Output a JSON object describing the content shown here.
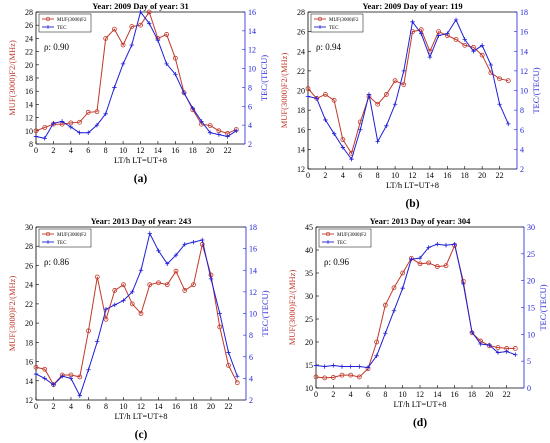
{
  "figure": {
    "colors": {
      "muf": "#c0392b",
      "tec": "#1f1fd6"
    }
  },
  "chart_data": [
    {
      "type": "line",
      "title": "Year: 2009   Day of year: 31",
      "xlabel": "LT/h LT=UT+8",
      "ylabel_left": "MUF(3000)F2/(MHz)",
      "ylabel_right": "TEC/(TECU)",
      "annotation": "ρ: 0.90",
      "panel_label": "(a)",
      "xlim": [
        0,
        24
      ],
      "ylim_left": [
        8,
        28
      ],
      "ylim_right": [
        2,
        16
      ],
      "xticks": [
        0,
        2,
        4,
        6,
        8,
        10,
        12,
        14,
        16,
        18,
        20,
        22
      ],
      "yticks_left": [
        8,
        10,
        12,
        14,
        16,
        18,
        20,
        22,
        24,
        26,
        28
      ],
      "yticks_right": [
        2,
        4,
        6,
        8,
        10,
        12,
        14,
        16
      ],
      "grid": false,
      "legend": "top-left",
      "series": [
        {
          "name": "MUF(3000)F2",
          "axis": "left",
          "marker": "circle",
          "x": [
            0,
            1,
            2,
            3,
            4,
            5,
            6,
            7,
            8,
            9,
            10,
            11,
            12,
            13,
            14,
            15,
            16,
            17,
            18,
            19,
            20,
            21,
            22,
            23
          ],
          "y": [
            10.0,
            10.5,
            11.0,
            11.0,
            11.2,
            11.3,
            12.8,
            12.9,
            24.0,
            25.4,
            23.0,
            25.8,
            26.0,
            28.0,
            24.0,
            24.6,
            21.0,
            15.8,
            13.2,
            11.0,
            10.8,
            10.0,
            9.6,
            10.2
          ]
        },
        {
          "name": "TEC",
          "axis": "right",
          "marker": "plus",
          "x": [
            0,
            1,
            2,
            3,
            4,
            5,
            6,
            7,
            8,
            9,
            10,
            11,
            12,
            13,
            14,
            15,
            16,
            17,
            18,
            19,
            20,
            21,
            22,
            23
          ],
          "y": [
            2.8,
            2.6,
            4.2,
            4.4,
            3.8,
            3.2,
            3.2,
            4.0,
            5.2,
            8.0,
            10.5,
            12.5,
            16.0,
            14.8,
            13.0,
            10.5,
            9.4,
            7.4,
            5.8,
            4.4,
            3.2,
            3.0,
            2.8,
            3.4
          ]
        }
      ]
    },
    {
      "type": "line",
      "title": "Year: 2009   Day of year: 119",
      "xlabel": "LT/h LT=UT+8",
      "ylabel_left": "MUF(3000)F2/(MHz)",
      "ylabel_right": "TEC/(TECU)",
      "annotation": "ρ: 0.94",
      "panel_label": "(b)",
      "xlim": [
        0,
        24
      ],
      "ylim_left": [
        12,
        28
      ],
      "ylim_right": [
        2,
        18
      ],
      "xticks": [
        0,
        2,
        4,
        6,
        8,
        10,
        12,
        14,
        16,
        18,
        20,
        22
      ],
      "yticks_left": [
        12,
        14,
        16,
        18,
        20,
        22,
        24,
        26,
        28
      ],
      "yticks_right": [
        2,
        4,
        6,
        8,
        10,
        12,
        14,
        16,
        18
      ],
      "grid": false,
      "legend": "top-left",
      "series": [
        {
          "name": "MUF(3000)F2",
          "axis": "left",
          "marker": "circle",
          "x": [
            0,
            1,
            2,
            3,
            4,
            5,
            6,
            7,
            8,
            9,
            10,
            11,
            12,
            13,
            14,
            15,
            16,
            17,
            18,
            19,
            20,
            21,
            22,
            23
          ],
          "y": [
            20.2,
            19.2,
            19.6,
            19.0,
            15.0,
            13.6,
            16.8,
            19.4,
            18.6,
            19.6,
            21.0,
            20.6,
            26.0,
            26.2,
            24.0,
            26.0,
            25.6,
            25.2,
            24.6,
            24.4,
            23.6,
            21.8,
            21.2,
            21.0
          ]
        },
        {
          "name": "TEC",
          "axis": "right",
          "marker": "plus",
          "x": [
            0,
            1,
            2,
            3,
            4,
            5,
            6,
            7,
            8,
            9,
            10,
            11,
            12,
            13,
            14,
            15,
            16,
            17,
            18,
            19,
            20,
            21,
            22,
            23
          ],
          "y": [
            9.4,
            9.2,
            7.0,
            5.6,
            4.2,
            3.0,
            6.0,
            9.6,
            4.8,
            6.4,
            8.6,
            12.0,
            17.0,
            15.8,
            13.4,
            15.6,
            15.8,
            17.2,
            15.2,
            14.0,
            14.6,
            12.6,
            8.6,
            6.6
          ]
        }
      ]
    },
    {
      "type": "line",
      "title": "Year: 2013   Day of year: 243",
      "xlabel": "LT/h LT=UT+8",
      "ylabel_left": "MUF(3000)F2/(MHz)",
      "ylabel_right": "TEC/(TECU)",
      "annotation": "ρ: 0.86",
      "panel_label": "(c)",
      "xlim": [
        0,
        24
      ],
      "ylim_left": [
        12,
        30
      ],
      "ylim_right": [
        2,
        18
      ],
      "xticks": [
        0,
        2,
        4,
        6,
        8,
        10,
        12,
        14,
        16,
        18,
        20,
        22
      ],
      "yticks_left": [
        12,
        14,
        16,
        18,
        20,
        22,
        24,
        26,
        28,
        30
      ],
      "yticks_right": [
        2,
        4,
        6,
        8,
        10,
        12,
        14,
        16,
        18
      ],
      "grid": false,
      "legend": "top-left",
      "series": [
        {
          "name": "MUF(3000)F2",
          "axis": "left",
          "marker": "circle",
          "x": [
            0,
            1,
            2,
            3,
            4,
            5,
            6,
            7,
            8,
            9,
            10,
            11,
            12,
            13,
            14,
            15,
            16,
            17,
            18,
            19,
            20,
            21,
            22,
            23
          ],
          "y": [
            15.4,
            15.2,
            13.6,
            14.6,
            14.6,
            14.4,
            19.2,
            24.8,
            20.4,
            23.4,
            24.0,
            22.0,
            21.0,
            24.0,
            24.2,
            24.0,
            25.4,
            23.4,
            24.0,
            28.2,
            25.0,
            19.6,
            15.6,
            13.8
          ]
        },
        {
          "name": "TEC",
          "axis": "right",
          "marker": "plus",
          "x": [
            0,
            1,
            2,
            3,
            4,
            5,
            6,
            7,
            8,
            9,
            10,
            11,
            12,
            13,
            14,
            15,
            16,
            17,
            18,
            19,
            20,
            21,
            22,
            23
          ],
          "y": [
            4.4,
            4.0,
            3.4,
            4.2,
            4.0,
            2.4,
            4.8,
            7.4,
            10.4,
            10.8,
            11.2,
            12.0,
            14.0,
            17.4,
            15.8,
            14.6,
            15.4,
            16.4,
            16.6,
            16.8,
            13.2,
            10.0,
            6.4,
            4.2
          ]
        }
      ]
    },
    {
      "type": "line",
      "title": "Year: 2013   Day of year: 304",
      "xlabel": "LT/h LT=UT+8",
      "ylabel_left": "MUF(3000)F2/(MHz)",
      "ylabel_right": "TEC/(TECU)",
      "annotation": "ρ: 0.96",
      "panel_label": "(d)",
      "xlim": [
        0,
        24
      ],
      "ylim_left": [
        10,
        45
      ],
      "ylim_right": [
        0,
        30
      ],
      "xticks": [
        0,
        2,
        4,
        6,
        8,
        10,
        12,
        14,
        16,
        18,
        20,
        22
      ],
      "yticks_left": [
        10,
        15,
        20,
        25,
        30,
        35,
        40,
        45
      ],
      "yticks_right": [
        0,
        5,
        10,
        15,
        20,
        25,
        30
      ],
      "grid": false,
      "legend": "top-left",
      "series": [
        {
          "name": "MUF(3000)F2",
          "axis": "left",
          "marker": "circle",
          "x": [
            0,
            1,
            2,
            3,
            4,
            5,
            6,
            7,
            8,
            9,
            10,
            11,
            12,
            13,
            14,
            15,
            16,
            17,
            18,
            19,
            20,
            21,
            22,
            23
          ],
          "y": [
            12.4,
            12.2,
            12.3,
            12.8,
            12.8,
            12.4,
            14.2,
            20.0,
            28.0,
            31.8,
            35.0,
            38.2,
            37.0,
            37.2,
            36.4,
            36.6,
            41.0,
            33.2,
            22.0,
            20.2,
            19.2,
            18.8,
            18.6,
            18.6
          ]
        },
        {
          "name": "TEC",
          "axis": "right",
          "marker": "plus",
          "x": [
            0,
            1,
            2,
            3,
            4,
            5,
            6,
            7,
            8,
            9,
            10,
            11,
            12,
            13,
            14,
            15,
            16,
            17,
            18,
            19,
            20,
            21,
            22,
            23
          ],
          "y": [
            4.2,
            4.0,
            4.2,
            4.0,
            4.0,
            4.0,
            3.8,
            6.0,
            10.2,
            14.4,
            18.6,
            24.0,
            24.2,
            26.2,
            26.8,
            26.6,
            26.8,
            19.4,
            10.4,
            8.2,
            8.0,
            6.6,
            6.8,
            6.2
          ]
        }
      ]
    }
  ]
}
